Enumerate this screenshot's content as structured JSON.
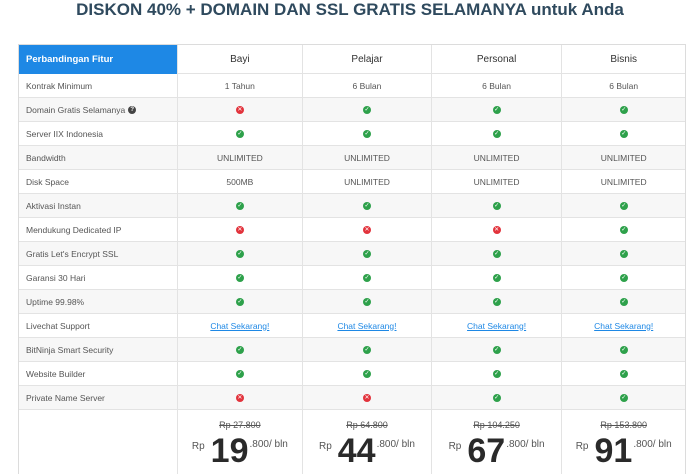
{
  "title": "DISKON 40% + DOMAIN DAN SSL GRATIS SELAMANYA untuk Anda",
  "header": {
    "feature_label": "Perbandingan Fitur",
    "plans": [
      "Bayi",
      "Pelajar",
      "Personal",
      "Bisnis"
    ]
  },
  "rows": [
    {
      "label": "Kontrak Minimum",
      "values": [
        "1 Tahun",
        "6 Bulan",
        "6 Bulan",
        "6 Bulan"
      ]
    },
    {
      "label": "Domain Gratis Selamanya",
      "help": "?",
      "values": [
        "no",
        "yes",
        "yes",
        "yes"
      ]
    },
    {
      "label": "Server IIX Indonesia",
      "values": [
        "yes",
        "yes",
        "yes",
        "yes"
      ]
    },
    {
      "label": "Bandwidth",
      "values": [
        "UNLIMITED",
        "UNLIMITED",
        "UNLIMITED",
        "UNLIMITED"
      ]
    },
    {
      "label": "Disk Space",
      "values": [
        "500MB",
        "UNLIMITED",
        "UNLIMITED",
        "UNLIMITED"
      ]
    },
    {
      "label": "Aktivasi Instan",
      "values": [
        "yes",
        "yes",
        "yes",
        "yes"
      ]
    },
    {
      "label": "Mendukung Dedicated IP",
      "values": [
        "no",
        "no",
        "no",
        "yes"
      ]
    },
    {
      "label": "Gratis Let's Encrypt SSL",
      "values": [
        "yes",
        "yes",
        "yes",
        "yes"
      ]
    },
    {
      "label": "Garansi 30 Hari",
      "values": [
        "yes",
        "yes",
        "yes",
        "yes"
      ]
    },
    {
      "label": "Uptime 99.98%",
      "values": [
        "yes",
        "yes",
        "yes",
        "yes"
      ]
    },
    {
      "label": "Livechat Support",
      "values": [
        "Chat Sekarang!",
        "Chat Sekarang!",
        "Chat Sekarang!",
        "Chat Sekarang!"
      ]
    },
    {
      "label": "BitNinja Smart Security",
      "values": [
        "yes",
        "yes",
        "yes",
        "yes"
      ]
    },
    {
      "label": "Website Builder",
      "values": [
        "yes",
        "yes",
        "yes",
        "yes"
      ]
    },
    {
      "label": "Private Name Server",
      "values": [
        "no",
        "no",
        "yes",
        "yes"
      ]
    }
  ],
  "prices": [
    {
      "old": "Rp 27.800",
      "currency": "Rp",
      "big": "19",
      "suffix": ".800/ bln"
    },
    {
      "old": "Rp 64.800",
      "currency": "Rp",
      "big": "44",
      "suffix": ".800/ bln"
    },
    {
      "old": "Rp 104.250",
      "currency": "Rp",
      "big": "67",
      "suffix": ".800/ bln"
    },
    {
      "old": "Rp 153.800",
      "currency": "Rp",
      "big": "91",
      "suffix": ".800/ bln"
    }
  ],
  "colors": {
    "accent": "#1e88e5",
    "ok": "#2ea14b",
    "no": "#e2333c"
  }
}
